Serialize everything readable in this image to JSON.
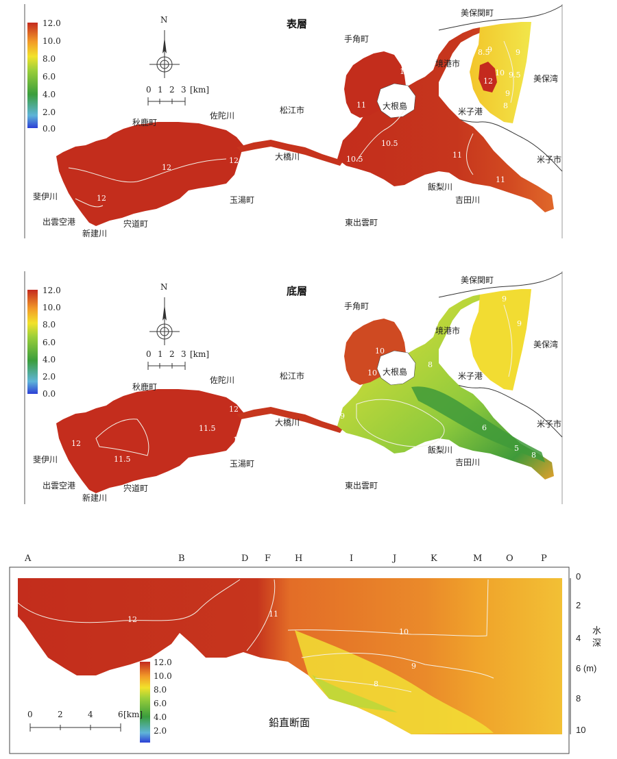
{
  "colorbar": {
    "ticks": [
      "12.0",
      "10.0",
      "8.0",
      "6.0",
      "4.0",
      "2.0",
      "0.0"
    ],
    "ticks_bottom": [
      "12.0",
      "10.0",
      "8.0",
      "6.0",
      "4.0",
      "2.0",
      "0.0"
    ],
    "ticks_section": [
      "12.0",
      "10.0",
      "8.0",
      "6.0",
      "4.0",
      "2.0"
    ],
    "colors": [
      "#2b3fd6",
      "#5fb4d8",
      "#3a9e3c",
      "#9ccf3a",
      "#f2e22a",
      "#f29a28",
      "#d8381e",
      "#c42a1e"
    ]
  },
  "compass": {
    "north": "N"
  },
  "scale_map": {
    "ticks": [
      "0",
      "1",
      "2",
      "3"
    ],
    "unit": "[km]"
  },
  "scale_section": {
    "ticks": [
      "0",
      "2",
      "4",
      "6"
    ],
    "unit": "[km]"
  },
  "map_top": {
    "title": "表層",
    "places": {
      "mihonoseki": "美保関町",
      "tesumi": "手角町",
      "sakaiminato": "境港市",
      "mihowan": "美保湾",
      "daikonjima": "大根島",
      "yonagoko": "米子港",
      "matsue": "松江市",
      "akashika": "秋鹿町",
      "sadagawa": "佐陀川",
      "ohashigawa": "大橋川",
      "yonago": "米子市",
      "iinashigawa": "飯梨川",
      "yoshidagawa": "吉田川",
      "hiikawa": "斐伊川",
      "tamayu": "玉湯町",
      "izumoairport": "出雲空港",
      "shinjigawa": "新建川",
      "shinji": "宍道町",
      "higashiizumo": "東出雲町"
    },
    "contours": [
      "12",
      "12",
      "12",
      "10.5",
      "11",
      "10",
      "10.5",
      "10.5",
      "11",
      "11",
      "9",
      "9",
      "8.5",
      "10",
      "12",
      "9.5",
      "8",
      "9"
    ]
  },
  "map_bottom": {
    "title": "底層",
    "places": {
      "mihonoseki": "美保関町",
      "tesumi": "手角町",
      "sakaiminato": "境港市",
      "mihowan": "美保湾",
      "daikonjima": "大根島",
      "yonagoko": "米子港",
      "matsue": "松江市",
      "akashika": "秋鹿町",
      "sadagawa": "佐陀川",
      "ohashigawa": "大橋川",
      "yonago": "米子市",
      "iinashigawa": "飯梨川",
      "yoshidagawa": "吉田川",
      "hiikawa": "斐伊川",
      "tamayu": "玉湯町",
      "izumoairport": "出雲空港",
      "shinjigawa": "新建川",
      "shinji": "宍道町",
      "higashiizumo": "東出雲町"
    },
    "contours": [
      "9",
      "9",
      "10",
      "8",
      "10",
      "12",
      "11.5",
      "12",
      "12",
      "11.5",
      "6",
      "5",
      "8",
      "9"
    ]
  },
  "section": {
    "title": "鉛直断面",
    "stations": [
      "A",
      "B",
      "D",
      "F",
      "H",
      "I",
      "J",
      "K",
      "M",
      "O",
      "P"
    ],
    "depth_ticks": [
      "0",
      "2",
      "4",
      "6 (m)",
      "8",
      "10"
    ],
    "depth_label": [
      "水",
      "深"
    ],
    "contours": [
      "12",
      "11",
      "10",
      "9",
      "8"
    ]
  }
}
